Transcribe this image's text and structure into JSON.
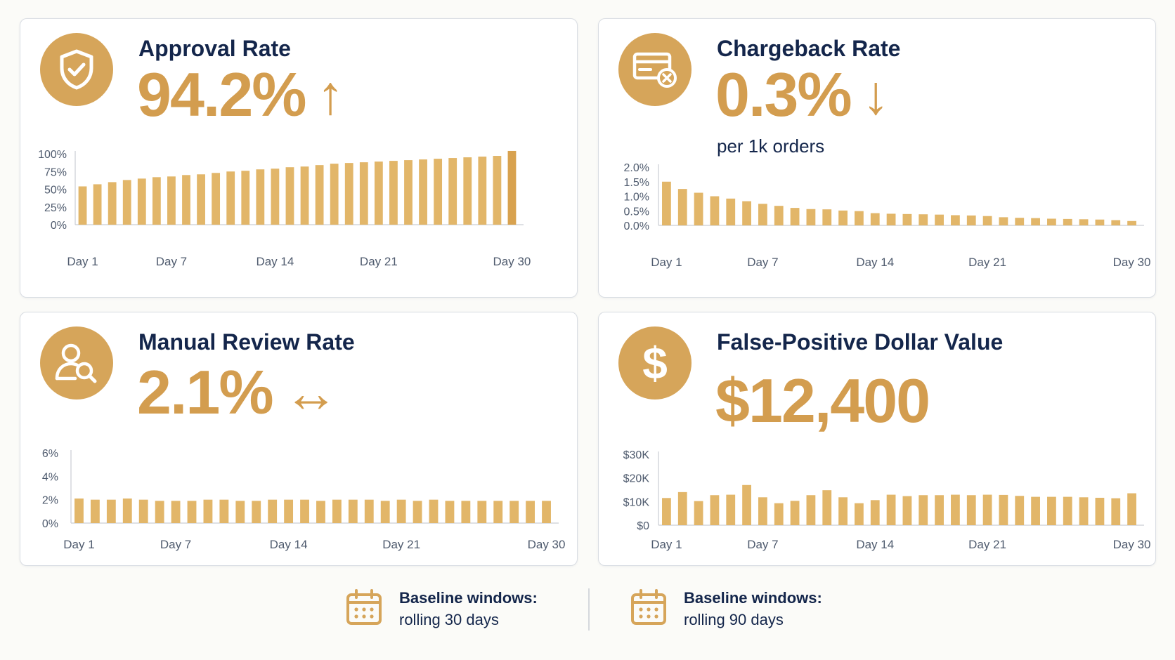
{
  "colors": {
    "accent": "#d6a55a",
    "bar": "#e2b669",
    "bar_dark": "#d8a24f",
    "navy": "#14264b",
    "axis_text": "#4f5b6e"
  },
  "cards": [
    {
      "id": "approval",
      "title": "Approval Rate",
      "value": "94.2%",
      "trend": "up",
      "trend_glyph": "↑",
      "icon": "shield-check-icon"
    },
    {
      "id": "chargeback",
      "title": "Chargeback Rate",
      "value": "0.3%",
      "trend": "down",
      "trend_glyph": "↓",
      "subtitle": "per 1k orders",
      "icon": "credit-card-x-icon"
    },
    {
      "id": "manual",
      "title": "Manual Review Rate",
      "value": "2.1%",
      "trend": "flat",
      "trend_glyph": "↔",
      "icon": "user-search-icon"
    },
    {
      "id": "falsepos",
      "title": "False-Positive Dollar Value",
      "value": "$12,400",
      "icon": "dollar-icon"
    }
  ],
  "chart_data": [
    {
      "type": "bar",
      "card": "Approval Rate",
      "x": [
        1,
        2,
        3,
        4,
        5,
        6,
        7,
        8,
        9,
        10,
        11,
        12,
        13,
        14,
        15,
        16,
        17,
        18,
        19,
        20,
        21,
        22,
        23,
        24,
        25,
        26,
        27,
        28,
        29,
        30
      ],
      "x_tick_labels": [
        "Day 1",
        "Day 7",
        "Day 14",
        "Day 21",
        "Day 30"
      ],
      "x_tick_positions": [
        1,
        7,
        14,
        21,
        30
      ],
      "y_tick_labels": [
        "0%",
        "25%",
        "50%",
        "75%",
        "100%"
      ],
      "ylim": [
        0,
        100
      ],
      "values": [
        54,
        57,
        60,
        63,
        65,
        67,
        68,
        70,
        71,
        73,
        75,
        76,
        78,
        79,
        81,
        82,
        84,
        86,
        87,
        88,
        89,
        90,
        91,
        92,
        93,
        94,
        95,
        96,
        97,
        104
      ]
    },
    {
      "type": "bar",
      "card": "Chargeback Rate",
      "x": [
        1,
        2,
        3,
        4,
        5,
        6,
        7,
        8,
        9,
        10,
        11,
        12,
        13,
        14,
        15,
        16,
        17,
        18,
        19,
        20,
        21,
        22,
        23,
        24,
        25,
        26,
        27,
        28,
        29,
        30
      ],
      "x_tick_labels": [
        "Day 1",
        "Day 7",
        "Day 14",
        "Day 21",
        "Day 30"
      ],
      "x_tick_positions": [
        1,
        7,
        14,
        21,
        30
      ],
      "y_tick_labels": [
        "0.0%",
        "0.5%",
        "1.0%",
        "1.5%",
        "2.0%"
      ],
      "ylim": [
        0,
        2.0
      ],
      "values": [
        1.5,
        1.25,
        1.12,
        1.0,
        0.92,
        0.83,
        0.74,
        0.67,
        0.6,
        0.56,
        0.55,
        0.51,
        0.49,
        0.42,
        0.4,
        0.39,
        0.38,
        0.37,
        0.35,
        0.34,
        0.32,
        0.28,
        0.26,
        0.25,
        0.23,
        0.22,
        0.21,
        0.2,
        0.18,
        0.15
      ]
    },
    {
      "type": "bar",
      "card": "Manual Review Rate",
      "x": [
        1,
        2,
        3,
        4,
        5,
        6,
        7,
        8,
        9,
        10,
        11,
        12,
        13,
        14,
        15,
        16,
        17,
        18,
        19,
        20,
        21,
        22,
        23,
        24,
        25,
        26,
        27,
        28,
        29,
        30
      ],
      "x_tick_labels": [
        "Day 1",
        "Day 7",
        "Day 14",
        "Day 21",
        "Day 30"
      ],
      "x_tick_positions": [
        1,
        7,
        14,
        21,
        30
      ],
      "y_tick_labels": [
        "0%",
        "2%",
        "4%",
        "6%"
      ],
      "ylim": [
        0,
        6
      ],
      "values": [
        2.1,
        2.0,
        2.0,
        2.1,
        2.0,
        1.9,
        1.9,
        1.9,
        2.0,
        2.0,
        1.9,
        1.9,
        2.0,
        2.0,
        2.0,
        1.9,
        2.0,
        2.0,
        2.0,
        1.9,
        2.0,
        1.9,
        2.0,
        1.9,
        1.9,
        1.9,
        1.9,
        1.9,
        1.9,
        1.9
      ]
    },
    {
      "type": "bar",
      "card": "False-Positive Dollar Value",
      "x": [
        1,
        2,
        3,
        4,
        5,
        6,
        7,
        8,
        9,
        10,
        11,
        12,
        13,
        14,
        15,
        16,
        17,
        18,
        19,
        20,
        21,
        22,
        23,
        24,
        25,
        26,
        27,
        28,
        29,
        30
      ],
      "x_tick_labels": [
        "Day 1",
        "Day 7",
        "Day 14",
        "Day 21",
        "Day 30"
      ],
      "x_tick_positions": [
        1,
        7,
        14,
        21,
        30
      ],
      "y_tick_labels": [
        "$0",
        "$10K",
        "$20K",
        "$30K"
      ],
      "ylim": [
        0,
        30000
      ],
      "values": [
        11500,
        14000,
        10200,
        12700,
        12900,
        17000,
        11800,
        9300,
        10300,
        12700,
        14800,
        11800,
        9300,
        10600,
        12900,
        12300,
        12700,
        12700,
        12900,
        12700,
        12900,
        12800,
        12400,
        12000,
        12000,
        12000,
        11800,
        11600,
        11400,
        13500
      ]
    }
  ],
  "footer": [
    {
      "heading": "Baseline windows:",
      "detail": "rolling 30 days",
      "icon": "calendar-icon"
    },
    {
      "heading": "Baseline windows:",
      "detail": "rolling 90 days",
      "icon": "calendar-icon"
    }
  ]
}
